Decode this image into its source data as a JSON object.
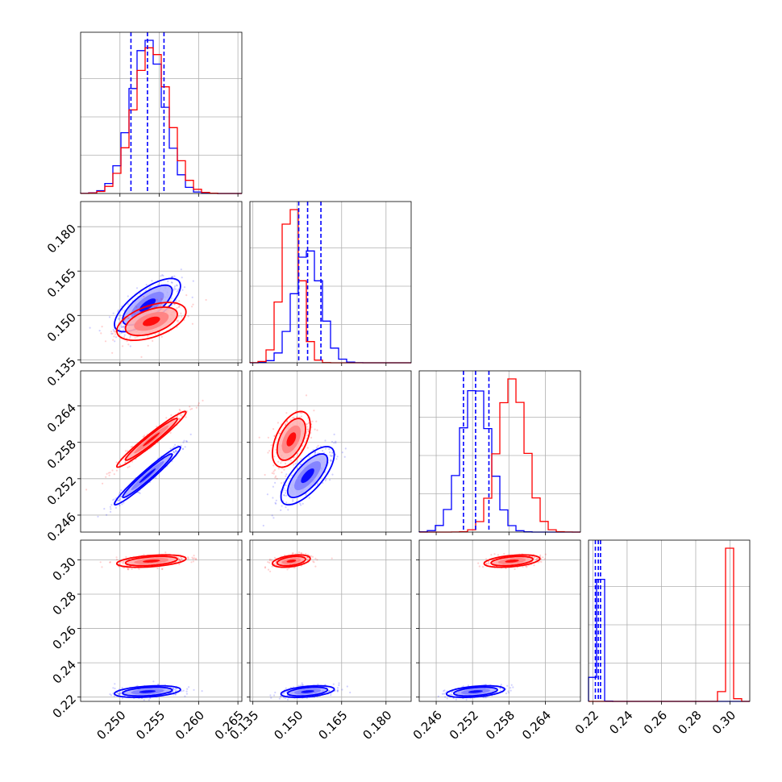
{
  "chart_data": {
    "type": "corner",
    "parameters": [
      {
        "index": 0,
        "range": [
          0.245,
          0.2655
        ],
        "ticks": [
          0.25,
          0.255,
          0.26,
          0.265
        ],
        "tick_labels": [
          "0.250",
          "0.255",
          "0.260",
          "0.265"
        ]
      },
      {
        "index": 1,
        "range": [
          0.134,
          0.1885
        ],
        "ticks": [
          0.135,
          0.15,
          0.165,
          0.18
        ],
        "tick_labels": [
          "0.135",
          "0.150",
          "0.165",
          "0.180"
        ]
      },
      {
        "index": 2,
        "range": [
          0.2432,
          0.2698
        ],
        "ticks": [
          0.246,
          0.252,
          0.258,
          0.264
        ],
        "tick_labels": [
          "0.246",
          "0.252",
          "0.258",
          "0.264"
        ]
      },
      {
        "index": 3,
        "range": [
          0.2175,
          0.3115
        ],
        "ticks": [
          0.22,
          0.24,
          0.26,
          0.28,
          0.3
        ],
        "tick_labels": [
          "0.22",
          "0.24",
          "0.26",
          "0.28",
          "0.30"
        ]
      }
    ],
    "grid": true,
    "series": [
      {
        "color": "#0000ff",
        "means": [
          0.2535,
          0.1535,
          0.2525,
          0.2232
        ],
        "sigmas": [
          0.0021,
          0.0045,
          0.0024,
          0.0017
        ],
        "correlations": {
          "0-1": 0.72,
          "0-2": 0.97,
          "1-2": 0.72,
          "0-3": 0.35,
          "1-3": 0.4,
          "2-3": 0.4
        },
        "quantiles": [
          [
            0.2514,
            0.2535,
            0.2556
          ],
          [
            0.1505,
            0.1535,
            0.158
          ],
          [
            0.2505,
            0.2525,
            0.2547
          ],
          [
            0.2215,
            0.2232,
            0.2245
          ]
        ]
      },
      {
        "color": "#ff0000",
        "means": [
          0.254,
          0.148,
          0.2585,
          0.2993
        ],
        "sigmas": [
          0.0022,
          0.0032,
          0.0023,
          0.0018
        ],
        "correlations": {
          "0-1": 0.5,
          "0-2": 0.97,
          "1-2": 0.5,
          "0-3": 0.4,
          "1-3": 0.4,
          "2-3": 0.4
        },
        "quantiles": []
      }
    ]
  }
}
